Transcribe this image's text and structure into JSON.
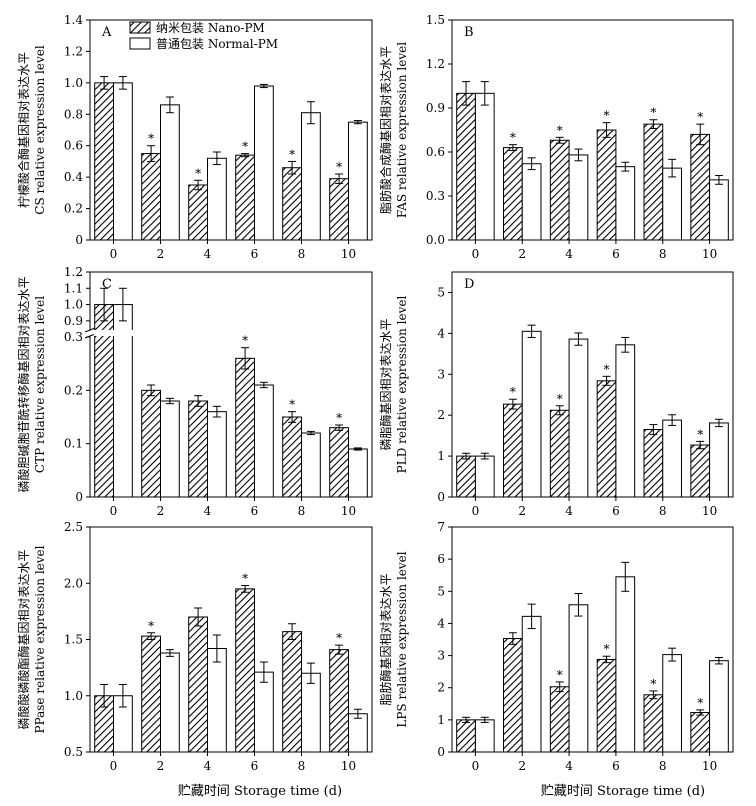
{
  "legend": {
    "nano": "纳米包装 Nano-PM",
    "normal": "普通包装 Normal-PM"
  },
  "x_axis_label": "贮藏时间 Storage time (d)",
  "significance_marker": "*",
  "colors": {
    "normal_fill": "#ffffff",
    "nano_hatch": "#000000",
    "axis": "#000000"
  },
  "chart_data": [
    {
      "panel": "A",
      "type": "bar",
      "ylabel_cn": "柠檬酸合酶基因相对表达水平",
      "ylabel_en": "CS relative expression level",
      "categories": [
        "0",
        "2",
        "4",
        "6",
        "8",
        "10"
      ],
      "ylim": [
        0,
        1.4
      ],
      "yticks": [
        0,
        0.2,
        0.4,
        0.6,
        0.8,
        1.0,
        1.2,
        1.4
      ],
      "ytick_labels": [
        "0",
        "0.2",
        "0.4",
        "0.6",
        "0.8",
        "1.0",
        "1.2",
        "1.4"
      ],
      "series": [
        {
          "name": "纳米包装 Nano-PM",
          "values": [
            1.0,
            0.55,
            0.35,
            0.54,
            0.46,
            0.39
          ],
          "errors": [
            0.04,
            0.05,
            0.03,
            0.01,
            0.04,
            0.03
          ],
          "significant": [
            false,
            true,
            true,
            true,
            true,
            true
          ]
        },
        {
          "name": "普通包装 Normal-PM",
          "values": [
            1.0,
            0.86,
            0.52,
            0.98,
            0.81,
            0.75
          ],
          "errors": [
            0.04,
            0.05,
            0.04,
            0.01,
            0.07,
            0.01
          ],
          "significant": [
            false,
            false,
            false,
            false,
            false,
            false
          ]
        }
      ]
    },
    {
      "panel": "B",
      "type": "bar",
      "ylabel_cn": "脂肪酸合成酶基因相对表达水平",
      "ylabel_en": "FAS relative expression level",
      "categories": [
        "0",
        "2",
        "4",
        "6",
        "8",
        "10"
      ],
      "ylim": [
        0,
        1.5
      ],
      "yticks": [
        0,
        0.3,
        0.6,
        0.9,
        1.2,
        1.5
      ],
      "ytick_labels": [
        "0.0",
        "0.3",
        "0.6",
        "0.9",
        "1.2",
        "1.5"
      ],
      "series": [
        {
          "name": "纳米包装 Nano-PM",
          "values": [
            1.0,
            0.63,
            0.68,
            0.75,
            0.79,
            0.72
          ],
          "errors": [
            0.08,
            0.02,
            0.02,
            0.05,
            0.03,
            0.07
          ],
          "significant": [
            false,
            true,
            true,
            true,
            true,
            true
          ]
        },
        {
          "name": "普通包装 Normal-PM",
          "values": [
            1.0,
            0.52,
            0.58,
            0.5,
            0.49,
            0.41
          ],
          "errors": [
            0.08,
            0.04,
            0.04,
            0.03,
            0.06,
            0.03
          ],
          "significant": [
            false,
            false,
            false,
            false,
            false,
            false
          ]
        }
      ]
    },
    {
      "panel": "C",
      "type": "bar",
      "broken_axis": true,
      "ylabel_cn": "磷酸胆碱胞苷酰转移酶基因相对表达水平",
      "ylabel_en": "CTP relative expression level",
      "categories": [
        "0",
        "2",
        "4",
        "6",
        "8",
        "10"
      ],
      "ylim_lower": [
        0,
        0.3
      ],
      "ylim_upper": [
        0.85,
        1.2
      ],
      "yticks": [
        0,
        0.1,
        0.2,
        0.3,
        0.9,
        1.0,
        1.1,
        1.2
      ],
      "ytick_labels": [
        "0",
        "0.1",
        "0.2",
        "0.3",
        "0.9",
        "1.0",
        "1.1",
        "1.2"
      ],
      "series": [
        {
          "name": "纳米包装 Nano-PM",
          "values": [
            1.0,
            0.2,
            0.18,
            0.26,
            0.15,
            0.13
          ],
          "errors": [
            0.1,
            0.01,
            0.01,
            0.02,
            0.01,
            0.005
          ],
          "significant": [
            false,
            false,
            false,
            true,
            true,
            true
          ]
        },
        {
          "name": "普通包装 Normal-PM",
          "values": [
            1.0,
            0.18,
            0.16,
            0.21,
            0.12,
            0.09
          ],
          "errors": [
            0.1,
            0.005,
            0.01,
            0.005,
            0.003,
            0.002
          ],
          "significant": [
            false,
            false,
            false,
            false,
            false,
            false
          ]
        }
      ]
    },
    {
      "panel": "D",
      "type": "bar",
      "ylabel_cn": "磷脂酶基因相对表达水平",
      "ylabel_en": "PLD relative expression level",
      "categories": [
        "0",
        "2",
        "4",
        "6",
        "8",
        "10"
      ],
      "ylim": [
        0,
        5.5
      ],
      "yticks": [
        0,
        1,
        2,
        3,
        4,
        5
      ],
      "ytick_labels": [
        "0",
        "1",
        "2",
        "3",
        "4",
        "5"
      ],
      "series": [
        {
          "name": "纳米包装 Nano-PM",
          "values": [
            1.0,
            2.27,
            2.12,
            2.84,
            1.65,
            1.27
          ],
          "errors": [
            0.07,
            0.12,
            0.11,
            0.11,
            0.12,
            0.09
          ],
          "significant": [
            false,
            true,
            true,
            true,
            false,
            true
          ]
        },
        {
          "name": "普通包装 Normal-PM",
          "values": [
            1.0,
            4.05,
            3.86,
            3.72,
            1.88,
            1.81
          ],
          "errors": [
            0.07,
            0.15,
            0.15,
            0.18,
            0.13,
            0.09
          ],
          "significant": [
            false,
            false,
            false,
            false,
            false,
            false
          ]
        }
      ]
    },
    {
      "panel": "E",
      "type": "bar",
      "ylabel_cn": "磷酸酸磷酸酯酶基因相对表达水平",
      "ylabel_en": "PPase relative expression level",
      "categories": [
        "0",
        "2",
        "4",
        "6",
        "8",
        "10"
      ],
      "ylim": [
        0.5,
        2.5
      ],
      "yticks": [
        0.5,
        1.0,
        1.5,
        2.0,
        2.5
      ],
      "ytick_labels": [
        "0.5",
        "1.0",
        "1.5",
        "2.0",
        "2.5"
      ],
      "series": [
        {
          "name": "纳米包装 Nano-PM",
          "values": [
            1.0,
            1.53,
            1.7,
            1.95,
            1.57,
            1.41
          ],
          "errors": [
            0.1,
            0.03,
            0.08,
            0.03,
            0.07,
            0.04
          ],
          "significant": [
            false,
            true,
            false,
            true,
            false,
            true
          ]
        },
        {
          "name": "普通包装 Normal-PM",
          "values": [
            1.0,
            1.38,
            1.42,
            1.21,
            1.2,
            0.84
          ],
          "errors": [
            0.1,
            0.03,
            0.12,
            0.09,
            0.09,
            0.04
          ],
          "significant": [
            false,
            false,
            false,
            false,
            false,
            false
          ]
        }
      ]
    },
    {
      "panel": "F",
      "type": "bar",
      "ylabel_cn": "脂肪酶基因相对表达水平",
      "ylabel_en": "LPS relative expression level",
      "categories": [
        "0",
        "2",
        "4",
        "6",
        "8",
        "10"
      ],
      "ylim": [
        0,
        7
      ],
      "yticks": [
        0,
        1,
        2,
        3,
        4,
        5,
        6,
        7
      ],
      "ytick_labels": [
        "0",
        "1",
        "2",
        "3",
        "4",
        "5",
        "6",
        "7"
      ],
      "series": [
        {
          "name": "纳米包装 Nano-PM",
          "values": [
            1.0,
            3.53,
            2.03,
            2.88,
            1.78,
            1.23
          ],
          "errors": [
            0.08,
            0.18,
            0.15,
            0.1,
            0.12,
            0.08
          ],
          "significant": [
            false,
            false,
            true,
            true,
            true,
            true
          ]
        },
        {
          "name": "普通包装 Normal-PM",
          "values": [
            1.0,
            4.22,
            4.58,
            5.45,
            3.03,
            2.84
          ],
          "errors": [
            0.08,
            0.38,
            0.35,
            0.45,
            0.2,
            0.1
          ],
          "significant": [
            false,
            false,
            false,
            false,
            false,
            false
          ]
        }
      ]
    }
  ]
}
